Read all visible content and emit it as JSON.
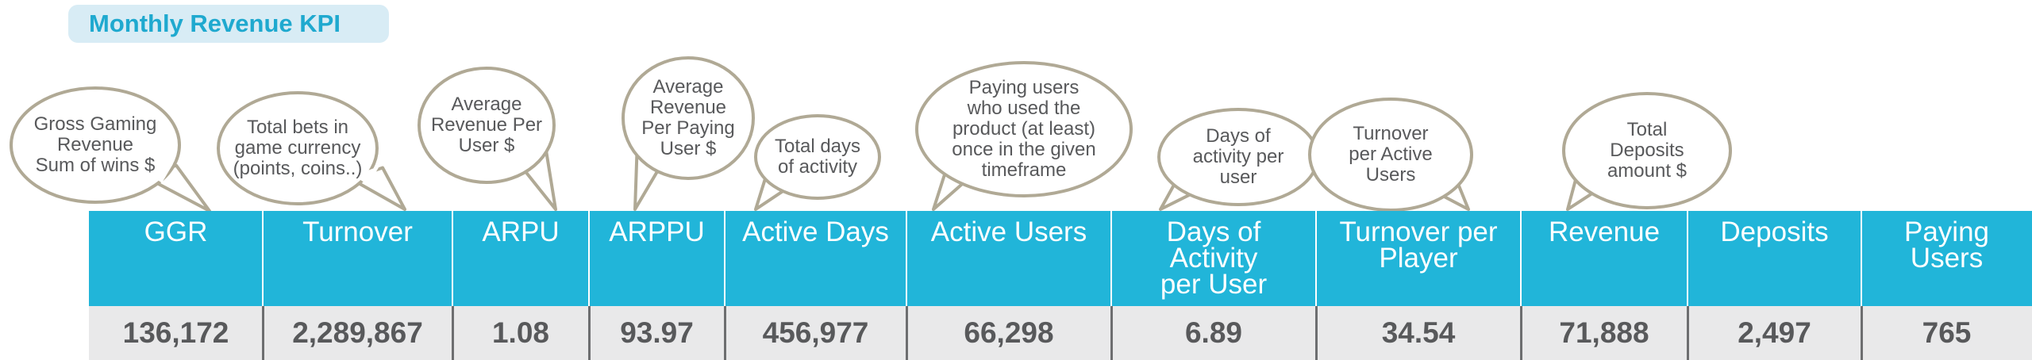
{
  "title": "Monthly Revenue KPI",
  "colors": {
    "accent": "#21b5d9",
    "title_bg": "#d8ecf5",
    "title_text": "#1fa9cf",
    "value_bg": "#e9e9ea",
    "text_gray": "#58595b",
    "bubble_stroke": "#b0a995"
  },
  "kpis": [
    {
      "label": "GGR",
      "value": "136,172",
      "note": "Gross Gaming\nRevenue\nSum of wins $"
    },
    {
      "label": "Turnover",
      "value": "2,289,867",
      "note": "Total bets in\ngame currency\n(points, coins..)"
    },
    {
      "label": "ARPU",
      "value": "1.08",
      "note": "Average\nRevenue Per\nUser $"
    },
    {
      "label": "ARPPU",
      "value": "93.97",
      "note": "Average\nRevenue\nPer Paying\nUser $"
    },
    {
      "label": "Active Days",
      "value": "456,977",
      "note": "Total days\nof activity"
    },
    {
      "label": "Active Users",
      "value": "66,298",
      "note": "Paying users\nwho used the\nproduct (at least)\nonce in the given\ntimeframe"
    },
    {
      "label": "Days of\nActivity\nper User",
      "value": "6.89",
      "note": "Days of\nactivity per\nuser"
    },
    {
      "label": "Turnover per\nPlayer",
      "value": "34.54",
      "note": "Turnover\nper Active\nUsers"
    },
    {
      "label": "Revenue",
      "value": "71,888",
      "note": "Total\nDeposits\namount $"
    },
    {
      "label": "Deposits",
      "value": "2,497",
      "note": ""
    },
    {
      "label": "Paying\nUsers",
      "value": "765",
      "note": ""
    }
  ]
}
